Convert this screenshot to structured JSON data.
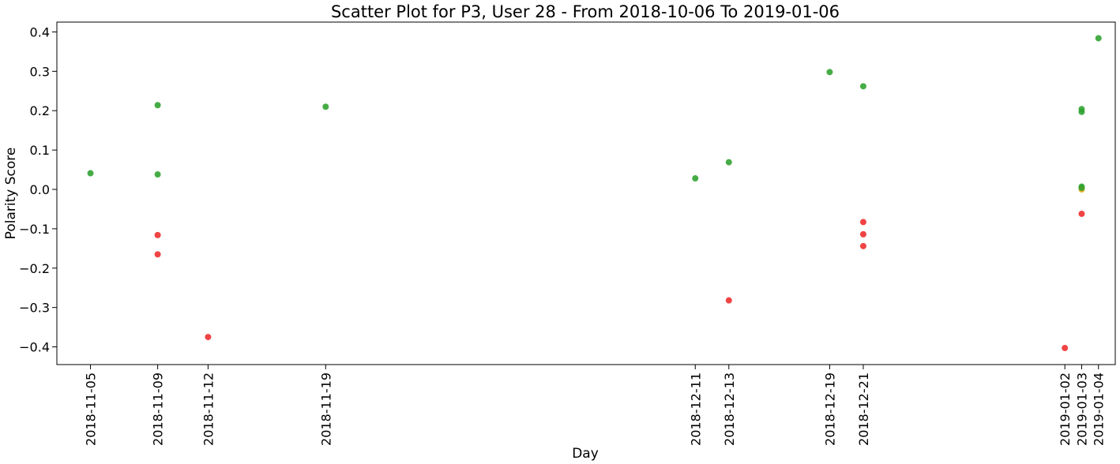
{
  "chart_data": {
    "type": "scatter",
    "title": "Scatter Plot for P3, User 28 - From 2018-10-06 To 2019-01-06",
    "xlabel": "Day",
    "ylabel": "Polarity Score",
    "xlim": [
      "2018-11-03",
      "2019-01-05"
    ],
    "ylim": [
      -0.445,
      0.425
    ],
    "grid": false,
    "legend": "none",
    "x_ticks": [
      "2018-11-05",
      "2018-11-09",
      "2018-11-12",
      "2018-11-19",
      "2018-12-11",
      "2018-12-13",
      "2018-12-19",
      "2018-12-21",
      "2019-01-02",
      "2019-01-03",
      "2019-01-04"
    ],
    "y_ticks": [
      -0.4,
      -0.3,
      -0.2,
      -0.1,
      0.0,
      0.1,
      0.2,
      0.3,
      0.4
    ],
    "y_tick_labels": [
      "−0.4",
      "−0.3",
      "−0.2",
      "−0.1",
      "0.0",
      "0.1",
      "0.2",
      "0.3",
      "0.4"
    ],
    "colors": {
      "positive": "#2ca02c",
      "negative": "#ee2a2a",
      "neutral": "#e6a817"
    },
    "points": [
      {
        "x": "2018-11-05",
        "y": 0.041,
        "sentiment": "positive"
      },
      {
        "x": "2018-11-09",
        "y": 0.214,
        "sentiment": "positive"
      },
      {
        "x": "2018-11-09",
        "y": 0.038,
        "sentiment": "positive"
      },
      {
        "x": "2018-11-09",
        "y": -0.116,
        "sentiment": "negative"
      },
      {
        "x": "2018-11-09",
        "y": -0.165,
        "sentiment": "negative"
      },
      {
        "x": "2018-11-12",
        "y": -0.375,
        "sentiment": "negative"
      },
      {
        "x": "2018-11-19",
        "y": 0.21,
        "sentiment": "positive"
      },
      {
        "x": "2018-12-11",
        "y": 0.028,
        "sentiment": "positive"
      },
      {
        "x": "2018-12-13",
        "y": 0.069,
        "sentiment": "positive"
      },
      {
        "x": "2018-12-13",
        "y": -0.282,
        "sentiment": "negative"
      },
      {
        "x": "2018-12-19",
        "y": 0.298,
        "sentiment": "positive"
      },
      {
        "x": "2018-12-21",
        "y": 0.262,
        "sentiment": "positive"
      },
      {
        "x": "2018-12-21",
        "y": -0.083,
        "sentiment": "negative"
      },
      {
        "x": "2018-12-21",
        "y": -0.114,
        "sentiment": "negative"
      },
      {
        "x": "2018-12-21",
        "y": -0.144,
        "sentiment": "negative"
      },
      {
        "x": "2019-01-02",
        "y": -0.403,
        "sentiment": "negative"
      },
      {
        "x": "2019-01-03",
        "y": 0.204,
        "sentiment": "positive"
      },
      {
        "x": "2019-01-03",
        "y": 0.197,
        "sentiment": "positive"
      },
      {
        "x": "2019-01-03",
        "y": 0.007,
        "sentiment": "positive"
      },
      {
        "x": "2019-01-03",
        "y": 0.0,
        "sentiment": "neutral"
      },
      {
        "x": "2019-01-03",
        "y": 0.004,
        "sentiment": "positive"
      },
      {
        "x": "2019-01-03",
        "y": -0.062,
        "sentiment": "negative"
      },
      {
        "x": "2019-01-04",
        "y": 0.384,
        "sentiment": "positive"
      }
    ]
  }
}
